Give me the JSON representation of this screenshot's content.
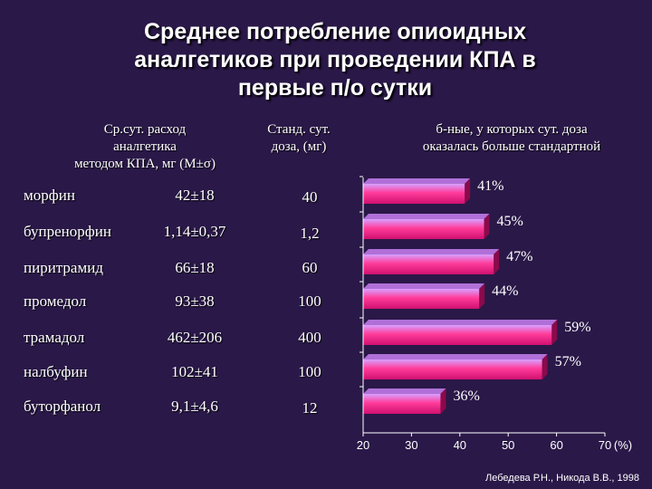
{
  "title": {
    "line1": "Среднее потребление опиоидных",
    "line2": "аналгетиков при проведении  КПА в",
    "line3": "первые п/о сутки"
  },
  "columns": {
    "col1": [
      "Ср.сут. расход",
      "аналгетика",
      "методом КПА, мг (M±σ)"
    ],
    "col2": [
      "Станд. сут.",
      "доза, (мг)"
    ],
    "col3": [
      "б-ные, у которых сут. доза",
      "оказалась больше стандартной"
    ]
  },
  "rows": [
    {
      "drug": "морфин",
      "mean": "42±18",
      "std_dose": "40"
    },
    {
      "drug": "бупренорфин",
      "mean": "1,14±0,37",
      "std_dose": "1,2"
    },
    {
      "drug": "пиритрамид",
      "mean": "66±18",
      "std_dose": "60"
    },
    {
      "drug": "промедол",
      "mean": "93±38",
      "std_dose": "100"
    },
    {
      "drug": "трамадол",
      "mean": "462±206",
      "std_dose": "400"
    },
    {
      "drug": "налбуфин",
      "mean": "102±41",
      "std_dose": "100"
    },
    {
      "drug": "буторфанол",
      "mean": "9,1±4,6",
      "std_dose": "12"
    }
  ],
  "chart_data": {
    "type": "bar",
    "orientation": "horizontal",
    "categories": [
      "морфин",
      "бупренорфин",
      "пиритрамид",
      "промедол",
      "трамадол",
      "налбуфин",
      "буторфанол"
    ],
    "values": [
      41,
      45,
      47,
      44,
      59,
      57,
      36
    ],
    "data_labels": [
      "41%",
      "45%",
      "47%",
      "44%",
      "59%",
      "57%",
      "36%"
    ],
    "xlim": [
      20,
      70
    ],
    "x_ticks": [
      "20",
      "30",
      "40",
      "50",
      "60",
      "70"
    ],
    "xlabel": "(%)",
    "grid": false,
    "colors": {
      "bar_light": "#d8a0ff",
      "bar_mid": "#ff3c9a",
      "bar_dark": "#d01070",
      "axis": "#ffffff",
      "background": "#2a1848"
    }
  },
  "footer": "Лебедева Р.Н., Никода В.В., 1998"
}
